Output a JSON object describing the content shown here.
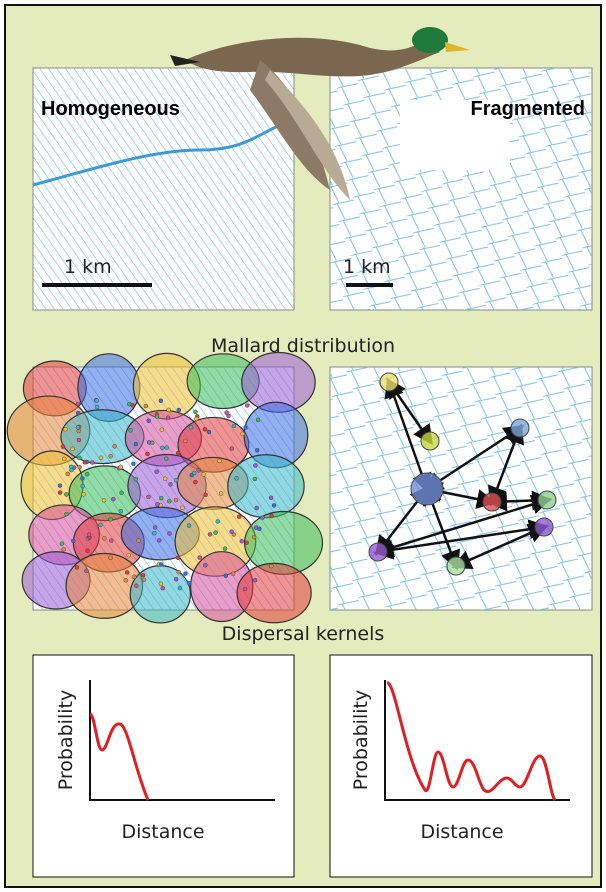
{
  "panels": {
    "homogeneous": {
      "title": "Homogeneous",
      "scale": "1 km"
    },
    "fragmented": {
      "title": "Fragmented",
      "scale": "1 km"
    }
  },
  "sections": {
    "distribution": "Mallard distribution",
    "kernels": "Dispersal kernels"
  },
  "kernels": [
    {
      "y_label": "Probability",
      "x_label": "Distance"
    },
    {
      "y_label": "Probability",
      "x_label": "Distance"
    }
  ]
}
